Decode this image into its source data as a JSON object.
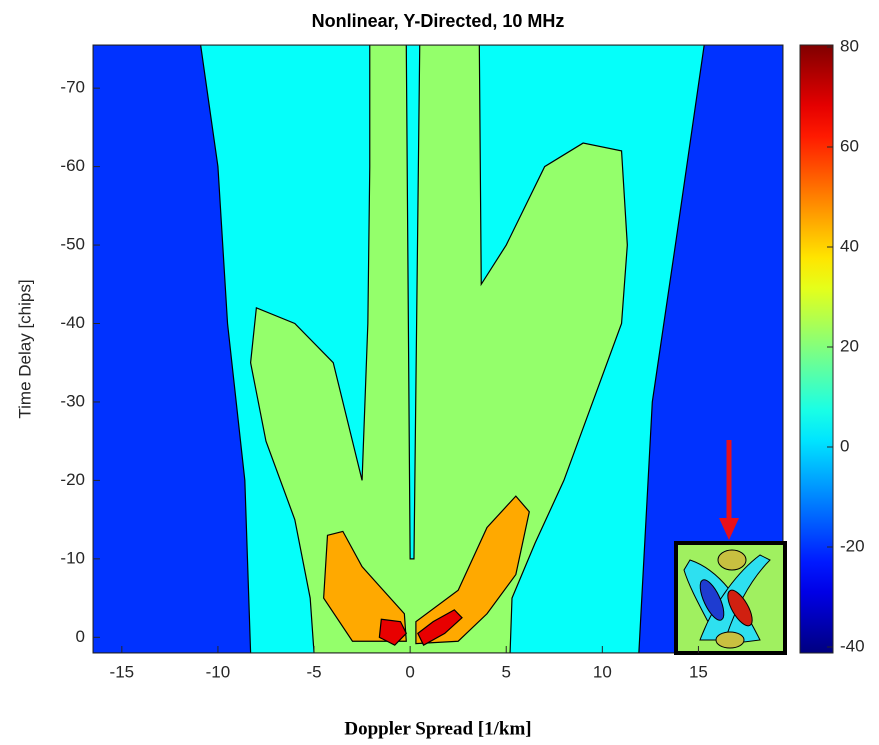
{
  "chart_data": {
    "type": "contour",
    "title": "Nonlinear, Y-Directed, 10 MHz",
    "xlabel": "Doppler Spread [1/km]",
    "ylabel": "Time Delay [chips]",
    "xlim": [
      -16.5,
      19.4
    ],
    "ylim": [
      2,
      -75.5
    ],
    "xticks": [
      -15,
      -10,
      -5,
      0,
      5,
      10,
      15
    ],
    "yticks": [
      0,
      -10,
      -20,
      -30,
      -40,
      -50,
      -60,
      -70
    ],
    "colormap": "jet",
    "clim": [
      -41.2,
      80.4
    ],
    "cticks": [
      -40,
      -20,
      0,
      20,
      40,
      60,
      80
    ],
    "regions": [
      {
        "level": 5,
        "x": [
          -16.5,
          19.4,
          19.4,
          -16.5
        ],
        "y": [
          -75.5,
          -75.5,
          2,
          2
        ]
      },
      {
        "level": -20,
        "x": [
          -16.5,
          -10.9,
          -10,
          -9.5,
          -8.6,
          -8.3,
          -16.5
        ],
        "y": [
          -75.5,
          -75.5,
          -60,
          -40,
          -20,
          2,
          2
        ]
      },
      {
        "level": -20,
        "x": [
          15.3,
          19.4,
          19.4,
          11.9,
          12.6,
          13.8
        ],
        "y": [
          -75.5,
          -75.5,
          2,
          2,
          -30,
          -50
        ]
      },
      {
        "level": 22,
        "x": [
          -2.1,
          3.6,
          3.7,
          5,
          7,
          9,
          11,
          11.3,
          11,
          9.5,
          8,
          6.5,
          5.3,
          5.2,
          -5,
          -5.2,
          -6,
          -7.5,
          -8.3,
          -8,
          -6,
          -4,
          -2.5,
          -2.2,
          -2.1
        ],
        "y": [
          -75.5,
          -75.5,
          -45,
          -50,
          -60,
          -63,
          -62,
          -50,
          -40,
          -30,
          -20,
          -12,
          -5,
          2,
          2,
          -5,
          -15,
          -25,
          -35,
          -42,
          -40,
          -35,
          -20,
          -40,
          -60
        ]
      },
      {
        "level": 5,
        "x": [
          -0.2,
          0.5,
          0.2,
          0
        ],
        "y": [
          -75.5,
          -75.5,
          -10,
          -10
        ]
      },
      {
        "level": 45,
        "x": [
          -4.3,
          -3.5,
          -2.5,
          -0.3,
          -0.2,
          -3,
          -4.5
        ],
        "y": [
          -13,
          -13.5,
          -9,
          -3,
          0.5,
          0.5,
          -5
        ]
      },
      {
        "level": 45,
        "x": [
          0.3,
          0.3,
          2.5,
          4,
          5.5,
          6.2,
          5.5,
          4,
          2.5
        ],
        "y": [
          0.8,
          -2,
          -6,
          -14,
          -18,
          -16,
          -8,
          -3,
          0.5
        ]
      },
      {
        "level": 68,
        "x": [
          -1.5,
          -0.5,
          -0.2,
          -0.8,
          -1.6
        ],
        "y": [
          -2.3,
          -2,
          -0.5,
          1,
          0
        ]
      },
      {
        "level": 68,
        "x": [
          0.4,
          1.2,
          2.3,
          2.7,
          1.8,
          0.7
        ],
        "y": [
          -0.5,
          -2,
          -3.5,
          -2.5,
          -0.5,
          1
        ]
      }
    ]
  }
}
